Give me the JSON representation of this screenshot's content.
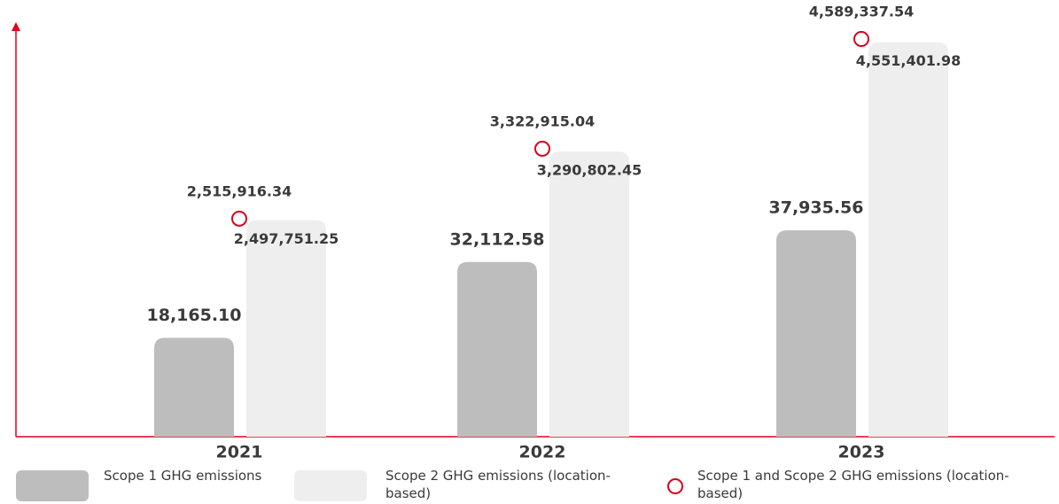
{
  "chart_data": {
    "type": "bar",
    "categories": [
      "2021",
      "2022",
      "2023"
    ],
    "series": [
      {
        "name": "Scope 1 GHG emissions",
        "color": "#bdbdbd",
        "values": [
          18165.1,
          32112.58,
          37935.56
        ],
        "value_labels": [
          "18,165.10",
          "32,112.58",
          "37,935.56"
        ]
      },
      {
        "name": "Scope 2 GHG emissions (location-based)",
        "color": "#eeeeee",
        "values": [
          2497751.25,
          3290802.45,
          4551401.98
        ],
        "value_labels": [
          "2,497,751.25",
          "3,290,802.45",
          "4,551,401.98"
        ]
      },
      {
        "name": "Scope 1 and Scope 2 GHG emissions (location-based)",
        "color": "#d9001b",
        "type": "marker",
        "values": [
          2515916.34,
          3322915.04,
          4589337.54
        ],
        "value_labels": [
          "2,515,916.34",
          "3,322,915.04",
          "4,589,337.54"
        ]
      }
    ],
    "axis_color": "#e0001b"
  }
}
